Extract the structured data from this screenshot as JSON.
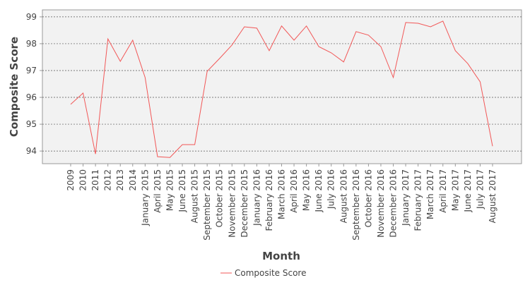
{
  "chart_data": {
    "type": "line",
    "x_label": "Month",
    "y_label": "Composite Score",
    "categories": [
      "2009",
      "2010",
      "2011",
      "2012",
      "2013",
      "2014",
      "January 2015",
      "April 2015",
      "May 2015",
      "June 2015",
      "August 2015",
      "September 2015",
      "October 2015",
      "November 2015",
      "December 2015",
      "January 2016",
      "February 2016",
      "March 2016",
      "April 2016",
      "May 2016",
      "June 2016",
      "July 2016",
      "August 2016",
      "September 2016",
      "October 2016",
      "November 2016",
      "December 2016",
      "January 2017",
      "February 2017",
      "March 2017",
      "April 2017",
      "May 2017",
      "June 2017",
      "July 2017",
      "August 2017"
    ],
    "series": [
      {
        "name": "Composite Score",
        "color": "#f25757",
        "values": [
          95.74,
          96.16,
          93.89,
          98.18,
          97.34,
          98.13,
          96.74,
          93.79,
          93.76,
          94.24,
          94.24,
          96.97,
          97.45,
          97.95,
          98.63,
          98.58,
          97.74,
          98.66,
          98.13,
          98.66,
          97.89,
          97.66,
          97.32,
          98.45,
          98.32,
          97.89,
          96.74,
          98.79,
          98.76,
          98.63,
          98.84,
          97.74,
          97.26,
          96.58,
          94.18
        ]
      }
    ],
    "ylim": [
      93.53,
      99.26
    ],
    "yticks": [
      94,
      95,
      96,
      97,
      98,
      99
    ],
    "grid": true,
    "legend": "bottom"
  }
}
